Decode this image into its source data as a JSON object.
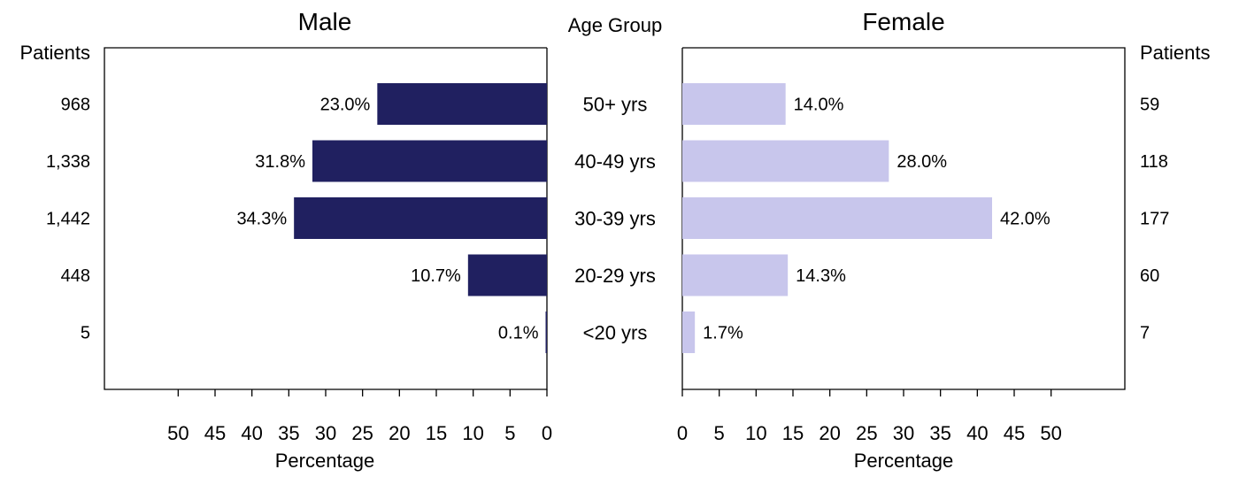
{
  "chart_data": {
    "type": "bar",
    "center_header": "Age Group",
    "categories": [
      "50+ yrs",
      "40-49 yrs",
      "30-39 yrs",
      "20-29 yrs",
      "<20 yrs"
    ],
    "xlim": [
      0,
      60
    ],
    "xticks": [
      0,
      5,
      10,
      15,
      20,
      25,
      30,
      35,
      40,
      45,
      50
    ],
    "series": [
      {
        "name": "Male",
        "color": "#202060",
        "orientation": "left",
        "values": [
          23.0,
          31.8,
          34.3,
          10.7,
          0.1
        ],
        "value_labels": [
          "23.0%",
          "31.8%",
          "34.3%",
          "10.7%",
          "0.1%"
        ],
        "xlabel": "Percentage",
        "patients_header": "Patients",
        "patients": [
          "968",
          "1,338",
          "1,442",
          "448",
          "5"
        ]
      },
      {
        "name": "Female",
        "color": "#c8c6ec",
        "orientation": "right",
        "values": [
          14.0,
          28.0,
          42.0,
          14.3,
          1.7
        ],
        "value_labels": [
          "14.0%",
          "28.0%",
          "42.0%",
          "14.3%",
          "1.7%"
        ],
        "xlabel": "Percentage",
        "patients_header": "Patients",
        "patients": [
          "59",
          "118",
          "177",
          "60",
          "7"
        ]
      }
    ]
  }
}
